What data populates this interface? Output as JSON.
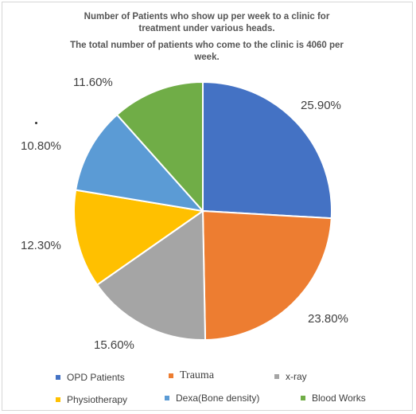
{
  "chart_data": {
    "type": "pie",
    "title_lines": [
      "Number of Patients who show up per week to a clinic for",
      "treatment under various heads.",
      "The total number of patients who come to the clinic is 4060 per",
      "week."
    ],
    "categories": [
      "OPD Patients",
      "Trauma",
      "x-ray",
      "Physiotherapy",
      "Dexa(Bone density)",
      "Blood Works"
    ],
    "values": [
      25.9,
      23.8,
      15.6,
      12.3,
      10.8,
      11.6
    ],
    "data_labels": [
      "25.90%",
      "23.80%",
      "15.60%",
      "12.30%",
      "10.80%",
      "11.60%"
    ],
    "colors": [
      "#4472c4",
      "#ed7d31",
      "#a5a5a5",
      "#ffc000",
      "#5b9bd5",
      "#70ad47"
    ],
    "legend_position": "bottom"
  }
}
